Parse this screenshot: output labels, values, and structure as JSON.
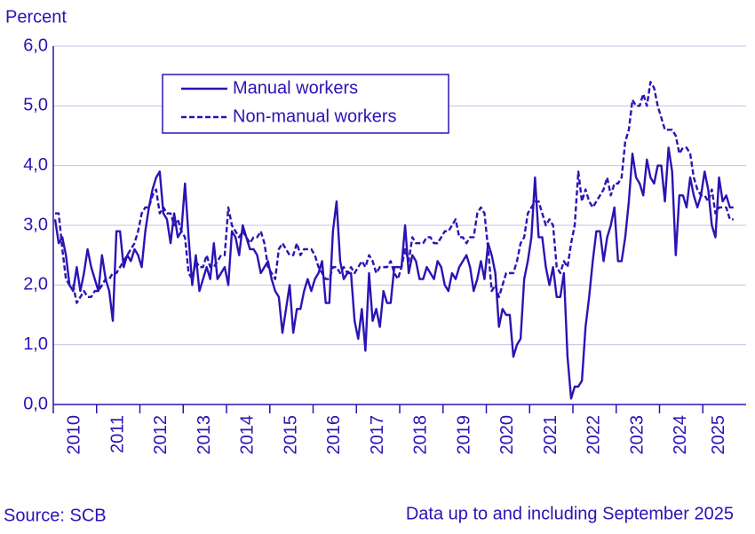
{
  "chart_data": {
    "type": "line",
    "y_label": "Percent",
    "source": "Source: SCB",
    "note": "Data up to and including September 2025",
    "categories": [
      "2010",
      null,
      null,
      null,
      null,
      null,
      null,
      null,
      null,
      null,
      null,
      null,
      "2011",
      null,
      null,
      null,
      null,
      null,
      null,
      null,
      null,
      null,
      null,
      null,
      "2012",
      null,
      null,
      null,
      null,
      null,
      null,
      null,
      null,
      null,
      null,
      null,
      "2013",
      null,
      null,
      null,
      null,
      null,
      null,
      null,
      null,
      null,
      null,
      null,
      "2014",
      null,
      null,
      null,
      null,
      null,
      null,
      null,
      null,
      null,
      null,
      null,
      "2015",
      null,
      null,
      null,
      null,
      null,
      null,
      null,
      null,
      null,
      null,
      null,
      "2016",
      null,
      null,
      null,
      null,
      null,
      null,
      null,
      null,
      null,
      null,
      null,
      "2017",
      null,
      null,
      null,
      null,
      null,
      null,
      null,
      null,
      null,
      null,
      null,
      "2018",
      null,
      null,
      null,
      null,
      null,
      null,
      null,
      null,
      null,
      null,
      null,
      "2019",
      null,
      null,
      null,
      null,
      null,
      null,
      null,
      null,
      null,
      null,
      null,
      "2020",
      null,
      null,
      null,
      null,
      null,
      null,
      null,
      null,
      null,
      null,
      null,
      "2021",
      null,
      null,
      null,
      null,
      null,
      null,
      null,
      null,
      null,
      null,
      null,
      "2022",
      null,
      null,
      null,
      null,
      null,
      null,
      null,
      null,
      null,
      null,
      null,
      "2023",
      null,
      null,
      null,
      null,
      null,
      null,
      null,
      null,
      null,
      null,
      null,
      "2024",
      null,
      null,
      null,
      null,
      null,
      null,
      null,
      null,
      null,
      null,
      null,
      "2025",
      null,
      null,
      null,
      null,
      null,
      null,
      null,
      null
    ],
    "series": [
      {
        "name": "Manual workers",
        "color": "#2a14b4",
        "style": "solid",
        "values": [
          3.1,
          2.7,
          2.8,
          2.5,
          2.0,
          1.9,
          2.3,
          1.9,
          2.2,
          2.6,
          2.3,
          2.1,
          1.9,
          2.5,
          2.1,
          1.9,
          1.4,
          2.9,
          2.9,
          2.3,
          2.5,
          2.4,
          2.6,
          2.5,
          2.3,
          2.9,
          3.3,
          3.6,
          3.8,
          3.9,
          3.2,
          3.1,
          2.7,
          3.2,
          2.8,
          2.9,
          3.7,
          2.8,
          2.0,
          2.5,
          1.9,
          2.1,
          2.3,
          2.1,
          2.7,
          2.1,
          2.2,
          2.3,
          2.0,
          2.9,
          2.8,
          2.5,
          3.0,
          2.8,
          2.6,
          2.6,
          2.5,
          2.2,
          2.3,
          2.4,
          2.1,
          1.9,
          1.8,
          1.2,
          1.6,
          2.0,
          1.2,
          1.6,
          1.6,
          1.9,
          2.1,
          1.9,
          2.1,
          2.2,
          2.4,
          1.7,
          1.7,
          2.9,
          3.4,
          2.4,
          2.1,
          2.2,
          2.2,
          1.4,
          1.1,
          1.6,
          0.9,
          2.2,
          1.4,
          1.6,
          1.3,
          1.9,
          1.7,
          1.7,
          2.3,
          2.3,
          2.3,
          3.0,
          2.2,
          2.5,
          2.4,
          2.1,
          2.1,
          2.3,
          2.2,
          2.1,
          2.4,
          2.3,
          2.0,
          1.9,
          2.2,
          2.1,
          2.3,
          2.4,
          2.5,
          2.3,
          1.9,
          2.1,
          2.4,
          2.1,
          2.7,
          2.5,
          2.2,
          1.3,
          1.6,
          1.5,
          1.5,
          0.8,
          1.0,
          1.1,
          2.1,
          2.4,
          2.8,
          3.8,
          2.8,
          2.8,
          2.3,
          2.0,
          2.3,
          1.8,
          1.8,
          2.2,
          0.8,
          0.1,
          0.3,
          0.3,
          0.4,
          1.3,
          1.8,
          2.4,
          2.9,
          2.9,
          2.4,
          2.8,
          3.0,
          3.3,
          2.4,
          2.4,
          2.8,
          3.4,
          4.2,
          3.8,
          3.7,
          3.5,
          4.1,
          3.8,
          3.7,
          4.0,
          4.0,
          3.4,
          4.3,
          3.9,
          2.5,
          3.5,
          3.5,
          3.3,
          3.8,
          3.5,
          3.3,
          3.5,
          3.9,
          3.6,
          3.0,
          2.8,
          3.8,
          3.4,
          3.5,
          3.3,
          3.3
        ]
      },
      {
        "name": "Non-manual workers",
        "color": "#2a14b4",
        "style": "dashed",
        "values": [
          3.2,
          3.2,
          2.6,
          2.1,
          2.0,
          2.0,
          1.7,
          1.8,
          1.9,
          1.8,
          1.8,
          1.9,
          1.9,
          2.0,
          2.1,
          2.1,
          2.2,
          2.2,
          2.3,
          2.4,
          2.5,
          2.6,
          2.7,
          2.9,
          3.2,
          3.3,
          3.3,
          3.5,
          3.6,
          3.2,
          3.3,
          3.2,
          3.2,
          3.0,
          3.1,
          2.9,
          2.8,
          2.2,
          2.1,
          2.4,
          2.3,
          2.3,
          2.5,
          2.3,
          2.3,
          2.4,
          2.5,
          2.5,
          3.3,
          3.0,
          2.9,
          2.8,
          2.9,
          2.8,
          2.7,
          2.8,
          2.8,
          2.9,
          2.7,
          2.3,
          2.2,
          2.1,
          2.6,
          2.7,
          2.6,
          2.5,
          2.5,
          2.7,
          2.5,
          2.6,
          2.6,
          2.6,
          2.5,
          2.3,
          2.2,
          2.1,
          2.1,
          2.3,
          2.3,
          2.2,
          2.3,
          2.2,
          2.3,
          2.2,
          2.3,
          2.4,
          2.3,
          2.5,
          2.4,
          2.2,
          2.3,
          2.3,
          2.3,
          2.4,
          2.2,
          2.1,
          2.3,
          2.6,
          2.4,
          2.8,
          2.7,
          2.7,
          2.7,
          2.8,
          2.8,
          2.7,
          2.7,
          2.8,
          2.9,
          2.9,
          3.0,
          3.1,
          2.8,
          2.8,
          2.7,
          2.8,
          2.8,
          3.2,
          3.3,
          3.2,
          2.6,
          1.9,
          2.0,
          1.8,
          2.0,
          2.2,
          2.2,
          2.2,
          2.4,
          2.7,
          2.8,
          3.2,
          3.3,
          3.4,
          3.4,
          3.2,
          3.0,
          3.1,
          3.0,
          2.3,
          2.2,
          2.4,
          2.3,
          2.7,
          3.0,
          3.9,
          3.4,
          3.6,
          3.4,
          3.3,
          3.4,
          3.5,
          3.6,
          3.8,
          3.5,
          3.7,
          3.7,
          3.8,
          4.4,
          4.6,
          5.1,
          5.0,
          5.0,
          5.2,
          5.0,
          5.4,
          5.3,
          5.0,
          4.8,
          4.6,
          4.6,
          4.6,
          4.5,
          4.2,
          4.3,
          4.3,
          4.2,
          3.8,
          3.6,
          3.5,
          3.5,
          3.4,
          3.6,
          3.2,
          3.3,
          3.3,
          3.3,
          3.1,
          3.1
        ]
      }
    ],
    "ylim": [
      0,
      6
    ],
    "yticks": [
      {
        "value": 0,
        "label": "0,0"
      },
      {
        "value": 1,
        "label": "1,0"
      },
      {
        "value": 2,
        "label": "2,0"
      },
      {
        "value": 3,
        "label": "3,0"
      },
      {
        "value": 4,
        "label": "4,0"
      },
      {
        "value": 5,
        "label": "5,0"
      },
      {
        "value": 6,
        "label": "6,0"
      }
    ],
    "grid": true,
    "legend": "upper left"
  }
}
